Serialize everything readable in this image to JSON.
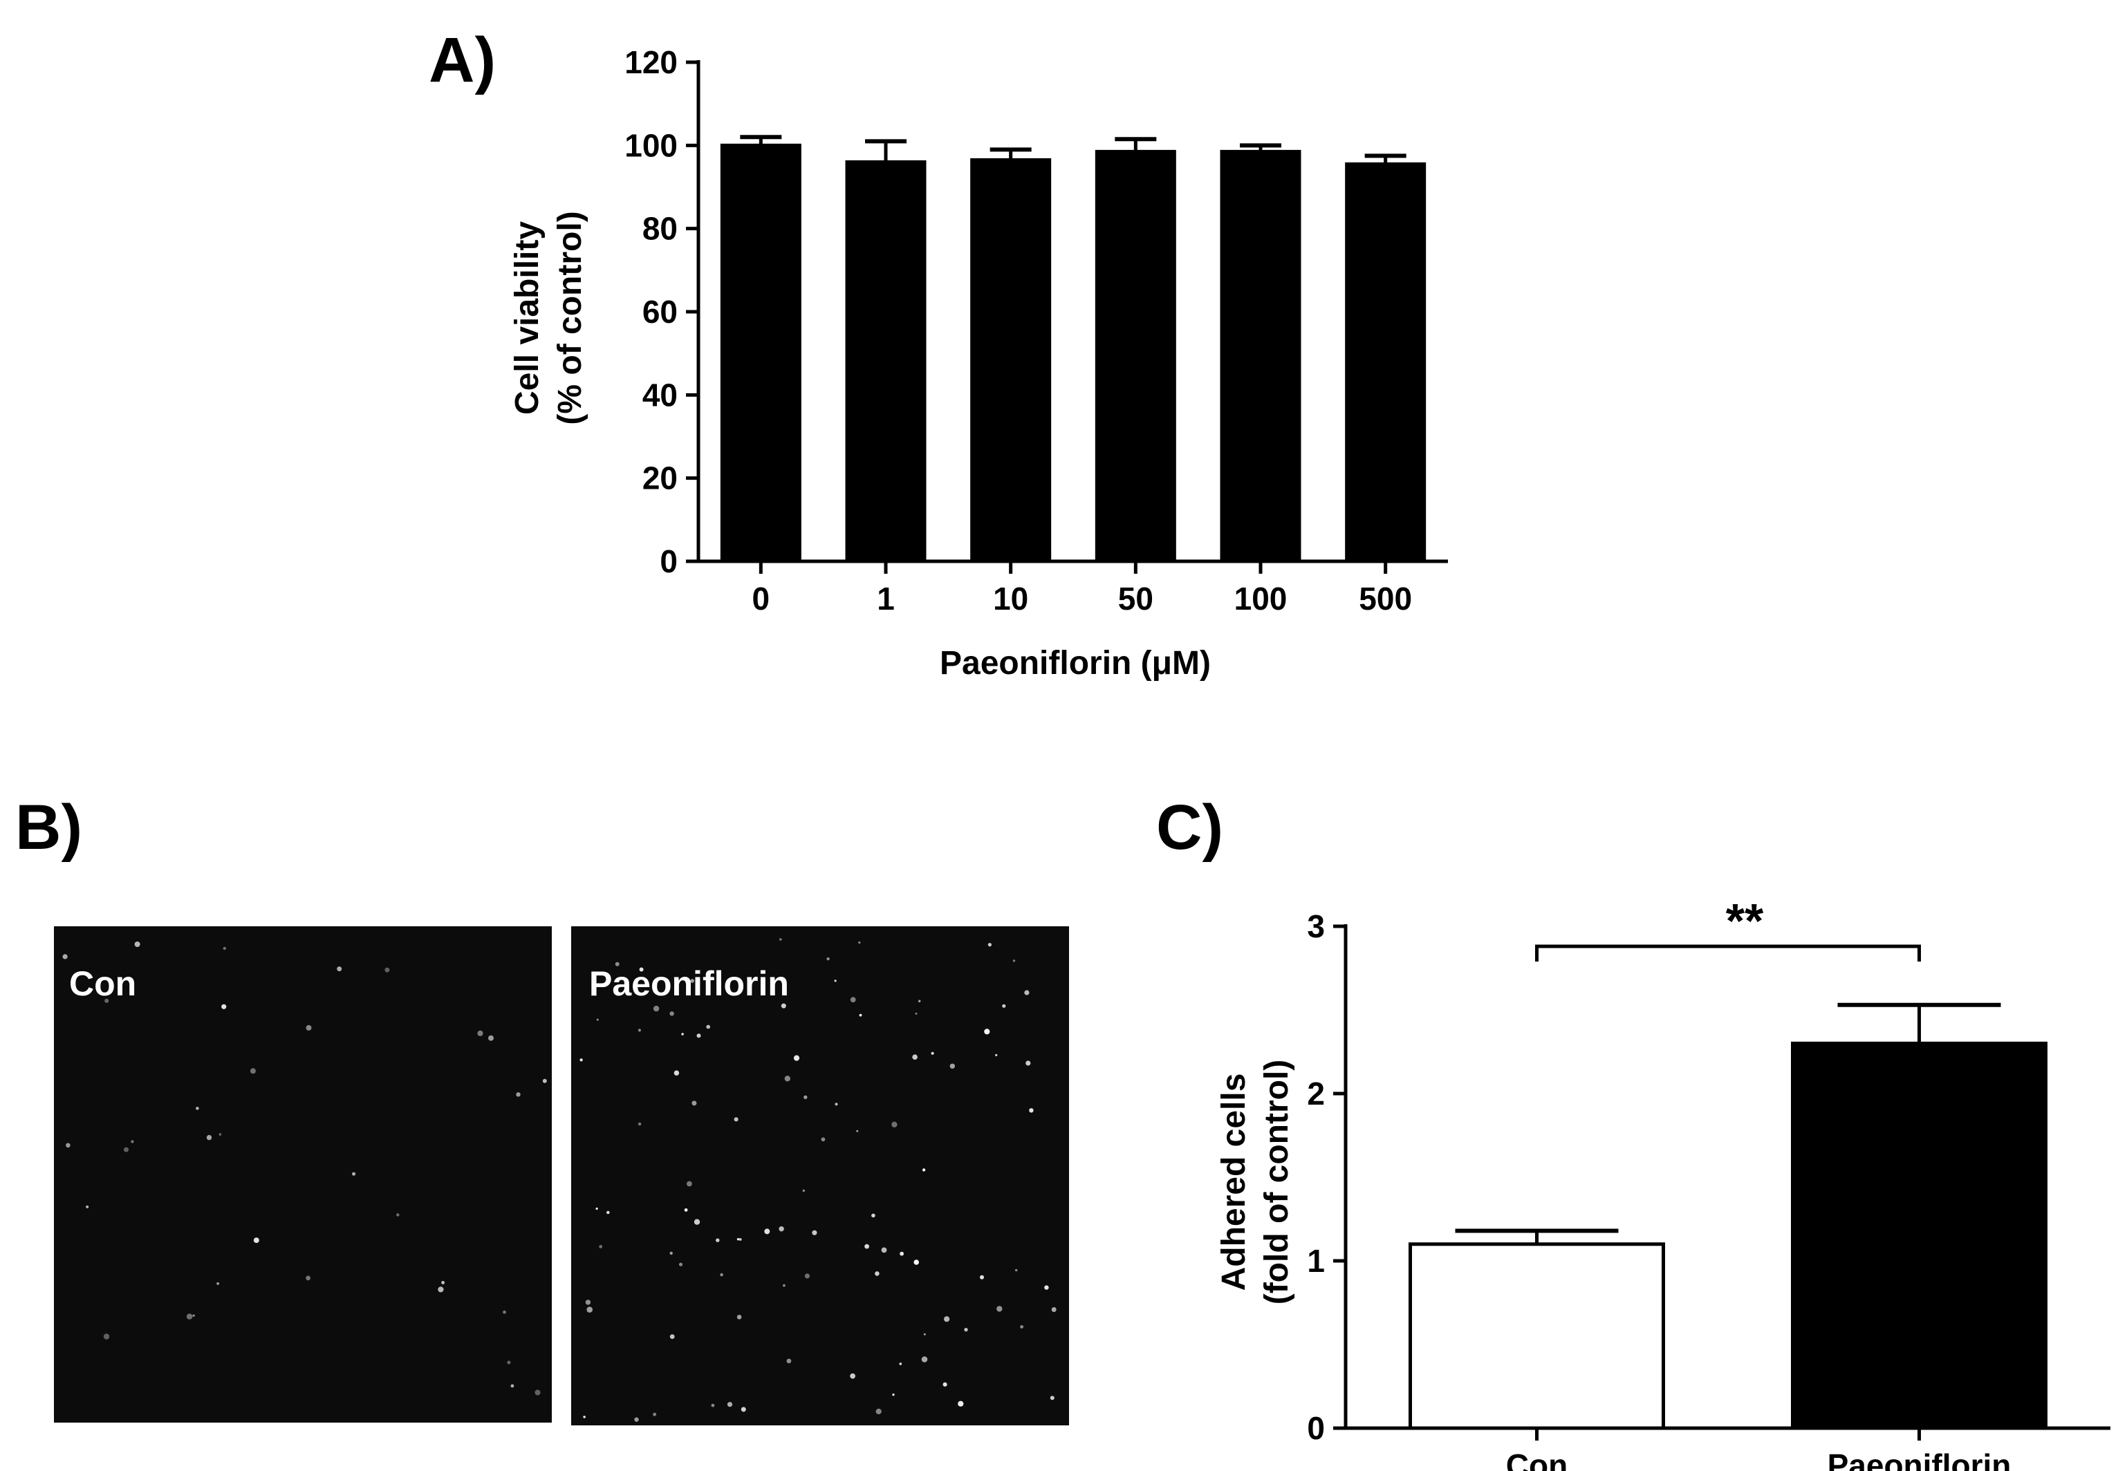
{
  "panel_labels": {
    "a": "A)",
    "b": "B)",
    "c": "C)"
  },
  "images": {
    "con_label": "Con",
    "paeoniflorin_label": "Paeoniflorin"
  },
  "significance": "**",
  "colors": {
    "bar_black": "#000000",
    "bar_white": "#ffffff",
    "micrograph_bg": "#0c0c0c"
  },
  "chart_data": [
    {
      "id": "A",
      "type": "bar",
      "categories": [
        "0",
        "1",
        "10",
        "50",
        "100",
        "500"
      ],
      "values": [
        100,
        96,
        96.5,
        98.5,
        98.5,
        95.5
      ],
      "errors": [
        2,
        5,
        2.5,
        3,
        1.5,
        2
      ],
      "xlabel": "Paeoniflorin (μM)",
      "ylabel_line1": "Cell viability",
      "ylabel_line2": "(% of control)",
      "ylim": [
        0,
        120
      ],
      "yticks": [
        0,
        20,
        40,
        60,
        80,
        100,
        120
      ],
      "bar_fill": [
        "#000000",
        "#000000",
        "#000000",
        "#000000",
        "#000000",
        "#000000"
      ]
    },
    {
      "id": "C",
      "type": "bar",
      "categories": [
        "Con",
        "Paeoniflorin"
      ],
      "values": [
        1.1,
        2.3
      ],
      "errors": [
        0.08,
        0.23
      ],
      "xlabel": "",
      "ylabel_line1": "Adhered cells",
      "ylabel_line2": "(fold of control)",
      "ylim": [
        0,
        3
      ],
      "yticks": [
        0,
        1,
        2,
        3
      ],
      "bar_fill": [
        "#ffffff",
        "#000000"
      ],
      "annotation": "**"
    }
  ]
}
